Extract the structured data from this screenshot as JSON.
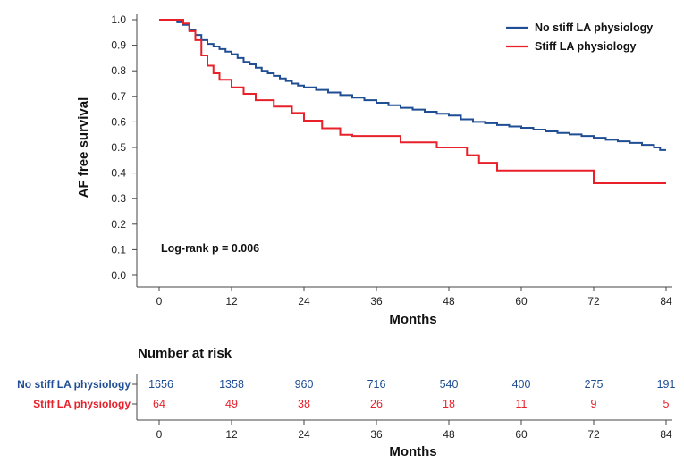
{
  "chart_data": {
    "type": "line",
    "subtype": "kaplan-meier step",
    "title": "",
    "xlabel": "Months",
    "ylabel": "AF free survival",
    "xlim": [
      0,
      84
    ],
    "ylim": [
      0,
      1.0
    ],
    "x_ticks": [
      0,
      12,
      24,
      36,
      48,
      60,
      72,
      84
    ],
    "y_ticks": [
      0.0,
      0.1,
      0.2,
      0.3,
      0.4,
      0.5,
      0.6,
      0.7,
      0.8,
      0.9,
      1.0
    ],
    "x_tick_labels": [
      "0",
      "12",
      "24",
      "36",
      "48",
      "60",
      "72",
      "84"
    ],
    "y_tick_labels": [
      "0.0",
      "0.1",
      "0.2",
      "0.3",
      "0.4",
      "0.5",
      "0.6",
      "0.7",
      "0.8",
      "0.9",
      "1.0"
    ],
    "legend_position": "top-right",
    "annotation": "Log-rank p = 0.006",
    "series": [
      {
        "name": "No stiff LA physiology",
        "color": "#1f4e94",
        "x": [
          0,
          3,
          4,
          5,
          6,
          7,
          8,
          9,
          10,
          11,
          12,
          13,
          14,
          15,
          16,
          17,
          18,
          19,
          20,
          21,
          22,
          23,
          24,
          26,
          28,
          30,
          32,
          34,
          36,
          38,
          40,
          42,
          44,
          46,
          48,
          50,
          52,
          54,
          56,
          58,
          60,
          62,
          64,
          66,
          68,
          70,
          72,
          74,
          76,
          78,
          80,
          82,
          83,
          84
        ],
        "values": [
          1.0,
          0.99,
          0.98,
          0.96,
          0.94,
          0.92,
          0.905,
          0.895,
          0.885,
          0.875,
          0.865,
          0.85,
          0.835,
          0.825,
          0.812,
          0.8,
          0.79,
          0.78,
          0.77,
          0.76,
          0.75,
          0.742,
          0.735,
          0.725,
          0.715,
          0.705,
          0.695,
          0.685,
          0.675,
          0.665,
          0.655,
          0.648,
          0.64,
          0.632,
          0.625,
          0.61,
          0.6,
          0.595,
          0.588,
          0.582,
          0.577,
          0.57,
          0.563,
          0.557,
          0.551,
          0.545,
          0.538,
          0.53,
          0.524,
          0.518,
          0.51,
          0.5,
          0.49,
          0.49
        ]
      },
      {
        "name": "Stiff LA physiology",
        "color": "#e8202a",
        "x": [
          0,
          4,
          5,
          6,
          7,
          8,
          9,
          10,
          12,
          14,
          16,
          19,
          22,
          24,
          27,
          30,
          32,
          40,
          46,
          51,
          53,
          56,
          72,
          84
        ],
        "values": [
          1.0,
          0.985,
          0.955,
          0.92,
          0.86,
          0.82,
          0.79,
          0.765,
          0.735,
          0.71,
          0.685,
          0.66,
          0.635,
          0.605,
          0.575,
          0.55,
          0.545,
          0.52,
          0.5,
          0.47,
          0.44,
          0.41,
          0.36,
          0.36
        ]
      }
    ],
    "risk_table": {
      "title": "Number at risk",
      "xlabel": "Months",
      "times": [
        "0",
        "12",
        "24",
        "36",
        "48",
        "60",
        "72",
        "84"
      ],
      "rows": [
        {
          "label": "No stiff LA physiology",
          "color": "#1f4e94",
          "counts": [
            "1656",
            "1358",
            "960",
            "716",
            "540",
            "400",
            "275",
            "191"
          ]
        },
        {
          "label": "Stiff LA physiology",
          "color": "#e8202a",
          "counts": [
            "64",
            "49",
            "38",
            "26",
            "18",
            "11",
            "9",
            "5"
          ]
        }
      ]
    }
  }
}
